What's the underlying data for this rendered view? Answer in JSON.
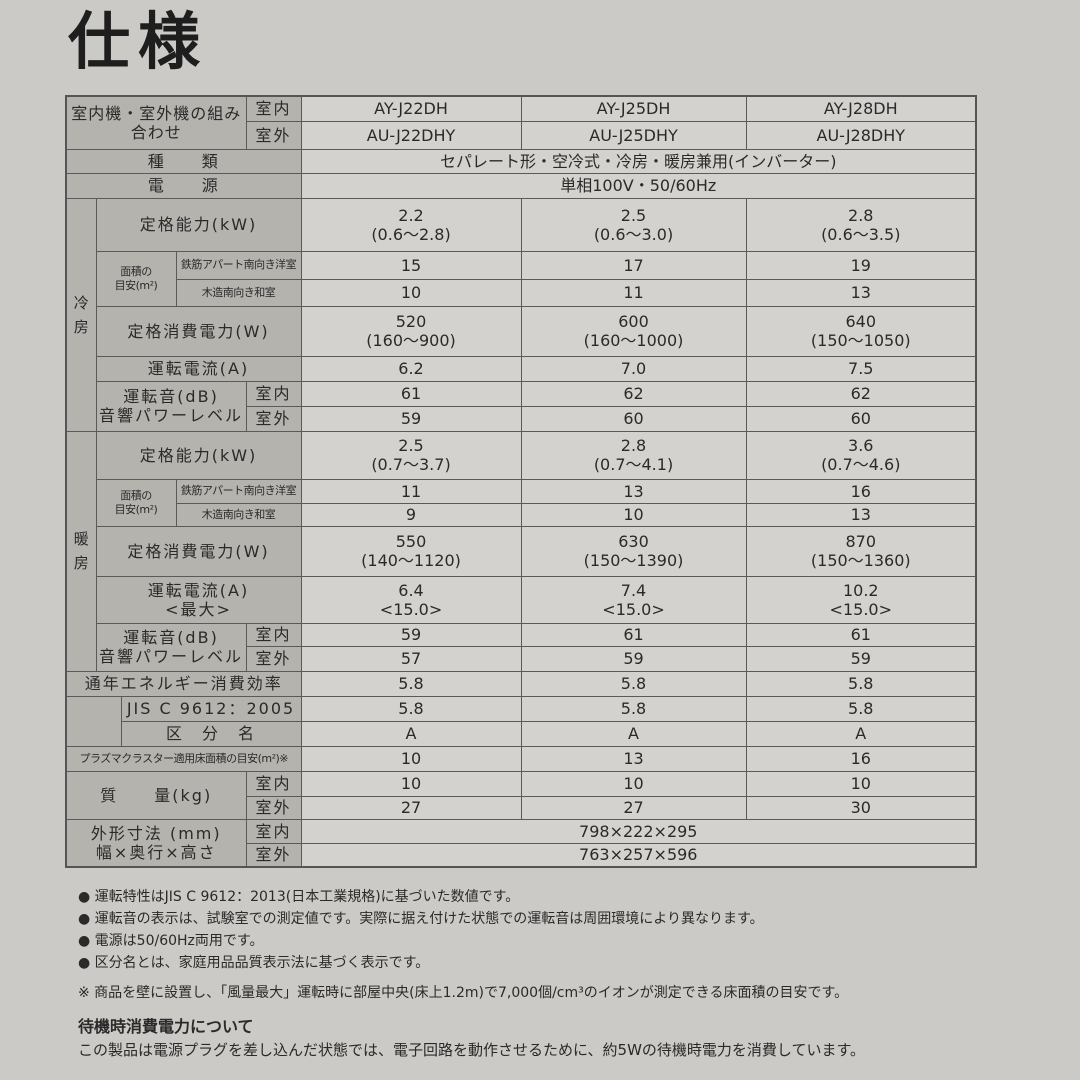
{
  "title": "仕様",
  "header": {
    "label": "室内機・室外機の組み合わせ",
    "indoor": "室内",
    "outdoor": "室外",
    "models_indoor": [
      "AY-J22DH",
      "AY-J25DH",
      "AY-J28DH"
    ],
    "models_outdoor": [
      "AU-J22DHY",
      "AU-J25DHY",
      "AU-J28DHY"
    ]
  },
  "type": {
    "label": "種　　類",
    "value": "セパレート形・空冷式・冷房・暖房兼用(インバーター)"
  },
  "power": {
    "label": "電　　源",
    "value": "単相100V・50/60Hz"
  },
  "cooling": {
    "section": "冷\n房",
    "capacity": {
      "label": "定格能力(kW)",
      "values": [
        "2.2\n(0.6〜2.8)",
        "2.5\n(0.6〜3.0)",
        "2.8\n(0.6〜3.5)"
      ]
    },
    "area": {
      "label": "面積の\n目安(m²)",
      "rc_label": "鉄筋アパート南向き洋室",
      "rc_values": [
        "15",
        "17",
        "19"
      ],
      "wood_label": "木造南向き和室",
      "wood_values": [
        "10",
        "11",
        "13"
      ]
    },
    "consumption": {
      "label": "定格消費電力(W)",
      "values": [
        "520\n(160〜900)",
        "600\n(160〜1000)",
        "640\n(150〜1050)"
      ]
    },
    "current": {
      "label": "運転電流(A)",
      "values": [
        "6.2",
        "7.0",
        "7.5"
      ]
    },
    "sound": {
      "label": "運転音(dB)\n音響パワーレベル",
      "indoor_label": "室内",
      "indoor_values": [
        "61",
        "62",
        "62"
      ],
      "outdoor_label": "室外",
      "outdoor_values": [
        "59",
        "60",
        "60"
      ]
    }
  },
  "heating": {
    "section": "暖\n房",
    "capacity": {
      "label": "定格能力(kW)",
      "values": [
        "2.5\n(0.7〜3.7)",
        "2.8\n(0.7〜4.1)",
        "3.6\n(0.7〜4.6)"
      ]
    },
    "area": {
      "label": "面積の\n目安(m²)",
      "rc_label": "鉄筋アパート南向き洋室",
      "rc_values": [
        "11",
        "13",
        "16"
      ],
      "wood_label": "木造南向き和室",
      "wood_values": [
        "9",
        "10",
        "13"
      ]
    },
    "consumption": {
      "label": "定格消費電力(W)",
      "values": [
        "550\n(140〜1120)",
        "630\n(150〜1390)",
        "870\n(150〜1360)"
      ]
    },
    "current": {
      "label": "運転電流(A)\n<最大>",
      "values": [
        "6.4\n<15.0>",
        "7.4\n<15.0>",
        "10.2\n<15.0>"
      ]
    },
    "sound": {
      "label": "運転音(dB)\n音響パワーレベル",
      "indoor_label": "室内",
      "indoor_values": [
        "59",
        "61",
        "61"
      ],
      "outdoor_label": "室外",
      "outdoor_values": [
        "57",
        "59",
        "59"
      ]
    }
  },
  "apf": {
    "label": "通年エネルギー消費効率",
    "values": [
      "5.8",
      "5.8",
      "5.8"
    ]
  },
  "jis": {
    "label": "JIS C 9612：2005",
    "values": [
      "5.8",
      "5.8",
      "5.8"
    ]
  },
  "class": {
    "label": "区　分　名",
    "values": [
      "A",
      "A",
      "A"
    ]
  },
  "plasma": {
    "label": "プラズマクラスター適用床面積の目安(m²)※",
    "values": [
      "10",
      "13",
      "16"
    ]
  },
  "weight": {
    "label": "質　　量(kg)",
    "indoor_label": "室内",
    "indoor_values": [
      "10",
      "10",
      "10"
    ],
    "outdoor_label": "室外",
    "outdoor_values": [
      "27",
      "27",
      "30"
    ]
  },
  "dimensions": {
    "label": "外形寸法 (mm)\n幅×奥行×高さ",
    "indoor_label": "室内",
    "indoor_value": "798×222×295",
    "outdoor_label": "室外",
    "outdoor_value": "763×257×596"
  },
  "notes": [
    "● 運転特性はJIS C 9612：2013(日本工業規格)に基づいた数値です。",
    "● 運転音の表示は、試験室での測定値です。実際に据え付けた状態での運転音は周囲環境により異なります。",
    "● 電源は50/60Hz両用です。",
    "● 区分名とは、家庭用品品質表示法に基づく表示です。"
  ],
  "footnote": "※ 商品を壁に設置し、「風量最大」運転時に部屋中央(床上1.2m)で7,000個/cm³のイオンが測定できる床面積の目安です。",
  "standby": {
    "heading": "待機時消費電力について",
    "text": "この製品は電源プラグを差し込んだ状態では、電子回路を動作させるために、約5Wの待機時電力を消費しています。"
  }
}
